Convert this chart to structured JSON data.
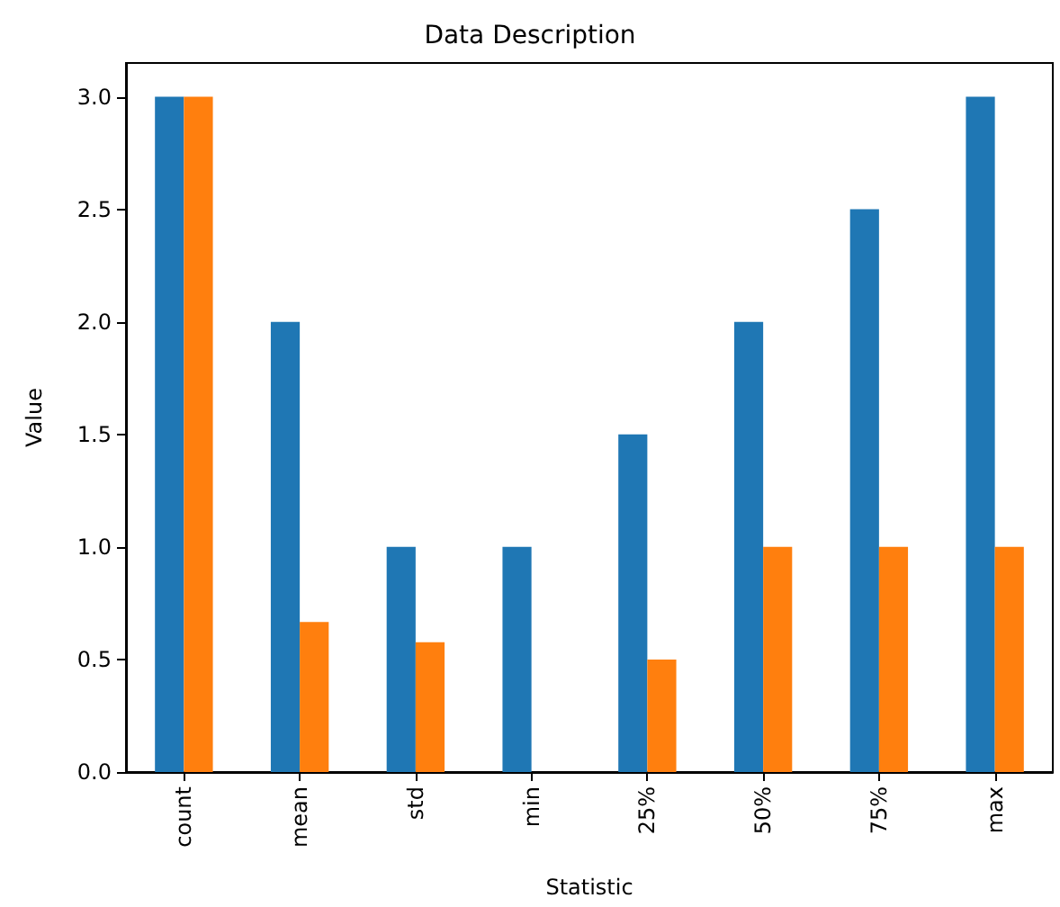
{
  "chart_data": {
    "type": "bar",
    "title": "Data Description",
    "xlabel": "Statistic",
    "ylabel": "Value",
    "categories": [
      "count",
      "mean",
      "std",
      "min",
      "25%",
      "50%",
      "75%",
      "max"
    ],
    "series": [
      {
        "color": "#1f77b4",
        "values": [
          3,
          2,
          1,
          1,
          1.5,
          2,
          2.5,
          3
        ]
      },
      {
        "color": "#ff7f0e",
        "values": [
          3,
          0.667,
          0.577,
          0,
          0.5,
          1,
          1,
          1
        ]
      }
    ],
    "ylim": [
      0,
      3.15
    ],
    "yticks": [
      {
        "value": 0,
        "label": "0.0"
      },
      0.5,
      {
        "value": 1,
        "label": "1.0"
      },
      1.5,
      {
        "value": 2,
        "label": "2.0"
      },
      2.5,
      {
        "value": 3,
        "label": "3.0"
      }
    ],
    "grid": false
  }
}
